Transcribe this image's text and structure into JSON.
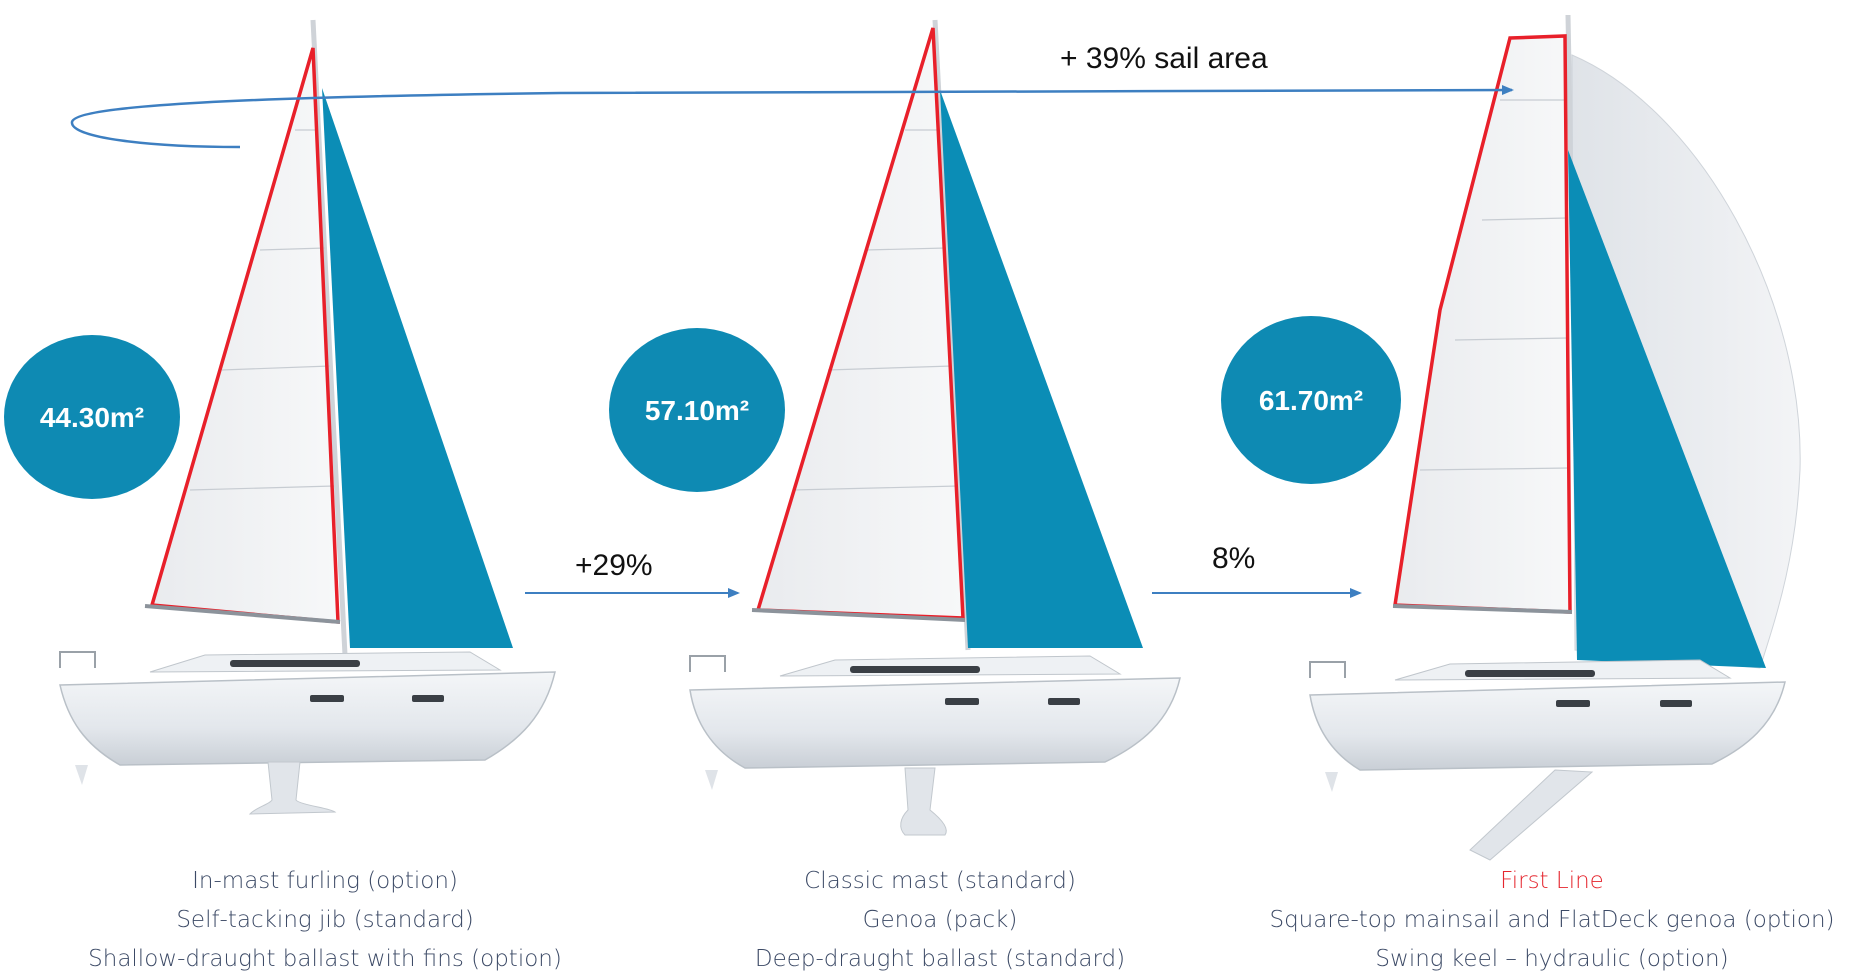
{
  "colors": {
    "badge": "#0e8ab3",
    "jib": "#0b8db6",
    "mainsail_outline": "#e8202a",
    "arrow": "#3d7fc1",
    "caption_text": "#3c4a66",
    "caption_highlight": "#e5262e"
  },
  "top_arrow": {
    "label": "+ 39% sail area"
  },
  "boats": [
    {
      "area_label": "44.30m²",
      "caption": [
        "In-mast furling (option)",
        "Self-tacking jib (standard)",
        "Shallow-draught ballast with fins (option)"
      ]
    },
    {
      "area_label": "57.10m²",
      "caption": [
        "Classic mast (standard)",
        "Genoa (pack)",
        "Deep-draught ballast (standard)"
      ]
    },
    {
      "area_label": "61.70m²",
      "caption_highlight": "First Line",
      "caption": [
        "Square-top mainsail and FlatDeck genoa (option)",
        "Swing keel – hydraulic (option)"
      ]
    }
  ],
  "arrows": [
    {
      "label": "+29%"
    },
    {
      "label": "8%"
    }
  ]
}
